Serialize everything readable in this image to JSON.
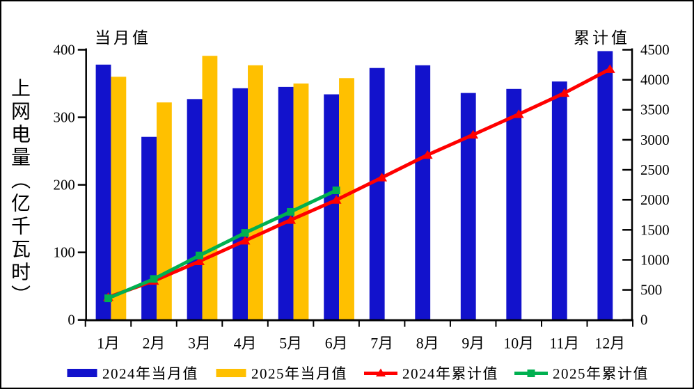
{
  "chart_data": {
    "type": "combo-bar-line",
    "categories": [
      "1月",
      "2月",
      "3月",
      "4月",
      "5月",
      "6月",
      "7月",
      "8月",
      "9月",
      "10月",
      "11月",
      "12月"
    ],
    "left_axis": {
      "corner_label": "当月值",
      "title": "上网电量（亿千瓦时）",
      "min": 0,
      "max": 400,
      "step": 100,
      "tick_labels": [
        "0",
        "100",
        "200",
        "300",
        "400"
      ]
    },
    "right_axis": {
      "corner_label": "累计值",
      "min": 0,
      "max": 4500,
      "step": 500,
      "tick_labels": [
        "0",
        "500",
        "1000",
        "1500",
        "2000",
        "2500",
        "3000",
        "3500",
        "4000",
        "4500"
      ]
    },
    "bar_series": [
      {
        "name": "2024年当月值",
        "color": "#1212CC",
        "axis": "left",
        "values": [
          378,
          271,
          327,
          343,
          345,
          334,
          373,
          377,
          336,
          342,
          353,
          398
        ]
      },
      {
        "name": "2025年当月值",
        "color": "#FFC000",
        "axis": "left",
        "values": [
          360,
          322,
          391,
          377,
          350,
          358,
          null,
          null,
          null,
          null,
          null,
          null
        ]
      }
    ],
    "line_series": [
      {
        "name": "2024年累计值",
        "color": "#FF0000",
        "marker": "triangle",
        "axis": "right",
        "values": [
          378,
          649,
          976,
          1319,
          1664,
          1998,
          2371,
          2748,
          3084,
          3426,
          3779,
          4177
        ]
      },
      {
        "name": "2025年累计值",
        "color": "#00B050",
        "marker": "square",
        "axis": "right",
        "values": [
          360,
          682,
          1073,
          1450,
          1800,
          2158,
          null,
          null,
          null,
          null,
          null,
          null
        ]
      }
    ],
    "axis_color": "#000000",
    "background": "#FFFFFF"
  }
}
